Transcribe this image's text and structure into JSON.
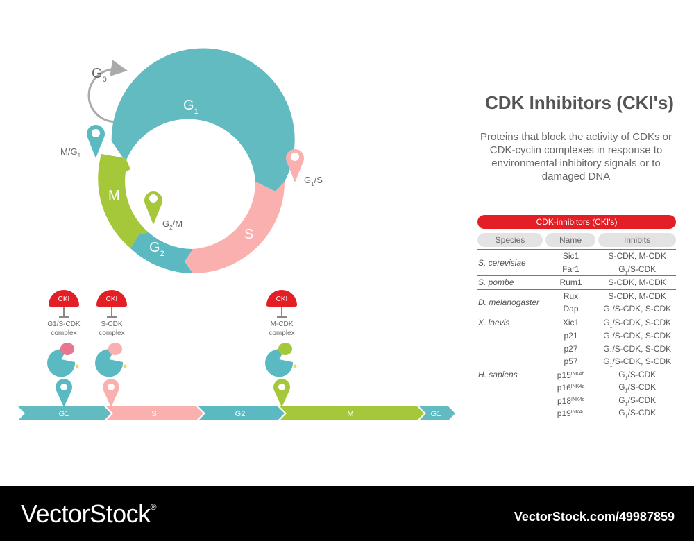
{
  "title": "CDK Inhibitors (CKI's)",
  "subtitle": "Proteins that block the activity of CDKs or CDK-cyclin complexes in response to environmental inhibitory signals or to damaged DNA",
  "cycle": {
    "g0": "G",
    "g0_sub": "0",
    "g1": "G",
    "g1_sub": "1",
    "s": "S",
    "g2": "G",
    "g2_sub": "2",
    "m": "M",
    "checkpoints": {
      "mg1": "M/G",
      "mg1_sub": "1",
      "g1s": "G",
      "g1s_sub": "1",
      "g1s_tail": "/S",
      "g2m": "G",
      "g2m_sub": "2",
      "g2m_tail": "/M"
    }
  },
  "timeline": {
    "phases": [
      "G1",
      "S",
      "G2",
      "M",
      "G1"
    ],
    "cki_label": "CKI",
    "complexes": [
      "G1/S-CDK",
      "S-CDK",
      "M-CDK"
    ],
    "complex_word": "complex"
  },
  "table": {
    "title": "CDK-inhibitors (CKI's)",
    "headers": [
      "Species",
      "Name",
      "Inhibits"
    ]
  },
  "colors": {
    "g1": "#62bbc1",
    "s": "#fbb0b0",
    "g2": "#5bbac1",
    "m": "#a5c83b",
    "cki": "#e31e24"
  },
  "footer": {
    "brand": "VectorStock",
    "reg": "®",
    "id": "VectorStock.com/49987859"
  }
}
